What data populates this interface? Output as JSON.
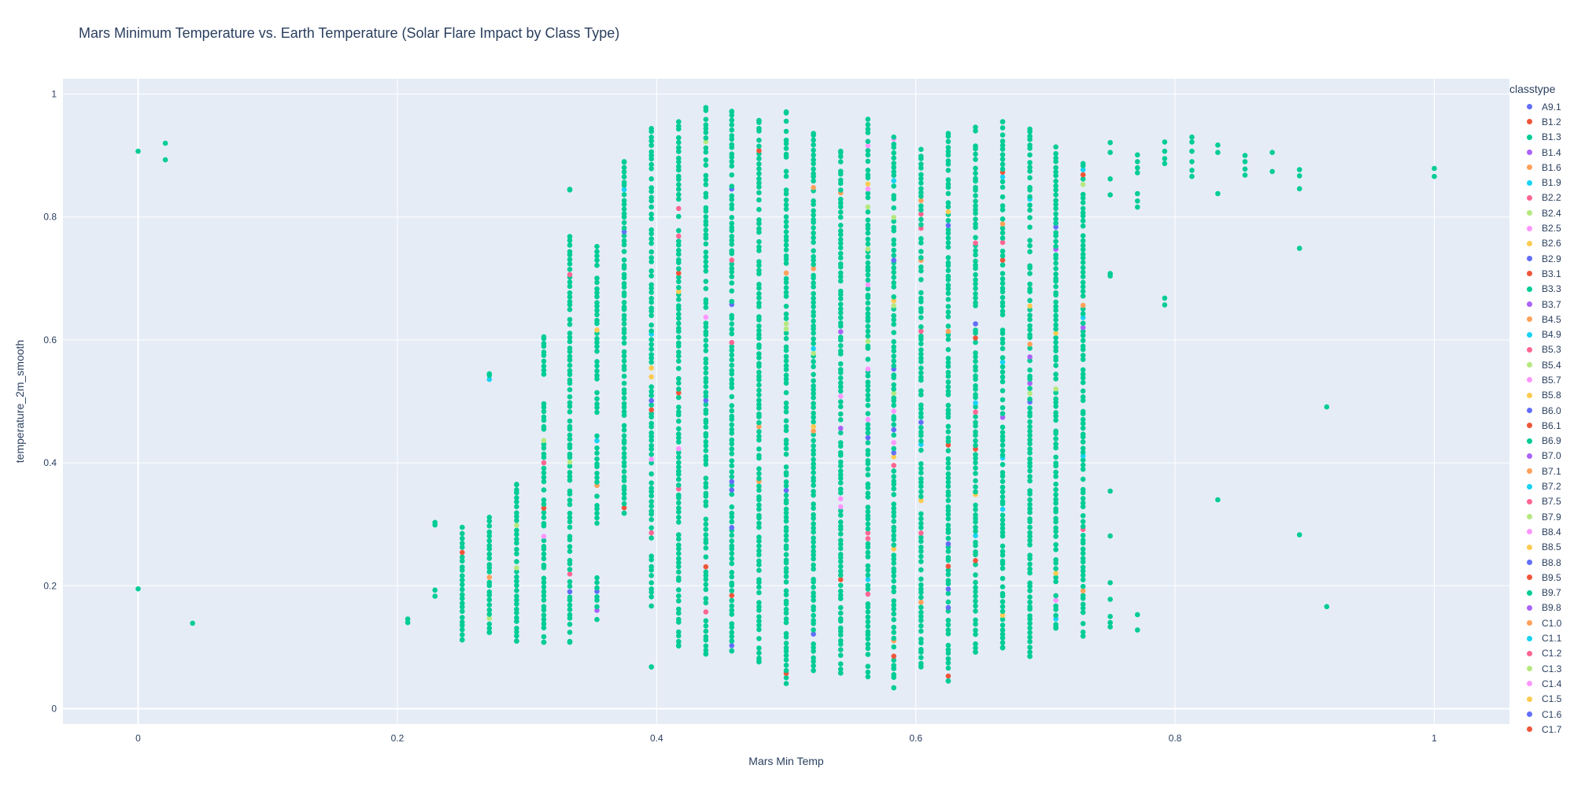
{
  "chart_data": {
    "type": "scatter",
    "title": "Mars Minimum Temperature vs. Earth Temperature (Solar Flare Impact by Class Type)",
    "xlabel": "Mars Min Temp",
    "ylabel": "temperature_2m_smooth",
    "xlim": [
      -0.058,
      1.058
    ],
    "ylim": [
      -0.025,
      1.025
    ],
    "x_ticks": [
      0,
      0.2,
      0.4,
      0.6,
      0.8,
      1
    ],
    "x_tick_labels": [
      "0",
      "0.2",
      "0.4",
      "0.6",
      "0.8",
      "1"
    ],
    "y_ticks": [
      0,
      0.2,
      0.4,
      0.6,
      0.8,
      1
    ],
    "y_tick_labels": [
      "0",
      "0.2",
      "0.4",
      "0.6",
      "0.8",
      "1"
    ],
    "grid": true,
    "plot_background": "#E5ECF6",
    "legend_title": "classtype",
    "legend_position": "right",
    "dominant_series": "B1.3",
    "classes": [
      {
        "name": "A9.1",
        "color": "#636EFA"
      },
      {
        "name": "B1.2",
        "color": "#EF553B"
      },
      {
        "name": "B1.3",
        "color": "#00CC96"
      },
      {
        "name": "B1.4",
        "color": "#AB63FA"
      },
      {
        "name": "B1.6",
        "color": "#FFA15A"
      },
      {
        "name": "B1.9",
        "color": "#19D3F3"
      },
      {
        "name": "B2.2",
        "color": "#FF6692"
      },
      {
        "name": "B2.4",
        "color": "#B6E880"
      },
      {
        "name": "B2.5",
        "color": "#FF97FF"
      },
      {
        "name": "B2.6",
        "color": "#FECB52"
      },
      {
        "name": "B2.9",
        "color": "#636EFA"
      },
      {
        "name": "B3.1",
        "color": "#EF553B"
      },
      {
        "name": "B3.3",
        "color": "#00CC96"
      },
      {
        "name": "B3.7",
        "color": "#AB63FA"
      },
      {
        "name": "B4.5",
        "color": "#FFA15A"
      },
      {
        "name": "B4.9",
        "color": "#19D3F3"
      },
      {
        "name": "B5.3",
        "color": "#FF6692"
      },
      {
        "name": "B5.4",
        "color": "#B6E880"
      },
      {
        "name": "B5.7",
        "color": "#FF97FF"
      },
      {
        "name": "B5.8",
        "color": "#FECB52"
      },
      {
        "name": "B6.0",
        "color": "#636EFA"
      },
      {
        "name": "B6.1",
        "color": "#EF553B"
      },
      {
        "name": "B6.9",
        "color": "#00CC96"
      },
      {
        "name": "B7.0",
        "color": "#AB63FA"
      },
      {
        "name": "B7.1",
        "color": "#FFA15A"
      },
      {
        "name": "B7.2",
        "color": "#19D3F3"
      },
      {
        "name": "B7.5",
        "color": "#FF6692"
      },
      {
        "name": "B7.9",
        "color": "#B6E880"
      },
      {
        "name": "B8.4",
        "color": "#FF97FF"
      },
      {
        "name": "B8.5",
        "color": "#FECB52"
      },
      {
        "name": "B8.8",
        "color": "#636EFA"
      },
      {
        "name": "B9.5",
        "color": "#EF553B"
      },
      {
        "name": "B9.7",
        "color": "#00CC96"
      },
      {
        "name": "B9.8",
        "color": "#AB63FA"
      },
      {
        "name": "C1.0",
        "color": "#FFA15A"
      },
      {
        "name": "C1.1",
        "color": "#19D3F3"
      },
      {
        "name": "C1.2",
        "color": "#FF6692"
      },
      {
        "name": "C1.3",
        "color": "#B6E880"
      },
      {
        "name": "C1.4",
        "color": "#FF97FF"
      },
      {
        "name": "C1.5",
        "color": "#FECB52"
      },
      {
        "name": "C1.6",
        "color": "#636EFA"
      },
      {
        "name": "C1.7",
        "color": "#EF553B"
      }
    ],
    "columns": [
      {
        "x": 0.0,
        "min": 0.195,
        "max": 0.907,
        "sparse": [
          0.907,
          0.195
        ]
      },
      {
        "x": 0.021,
        "min": 0.893,
        "max": 0.92,
        "sparse": [
          0.92,
          0.893
        ]
      },
      {
        "x": 0.042,
        "min": 0.139,
        "max": 0.139,
        "sparse": [
          0.139
        ]
      },
      {
        "x": 0.208,
        "min": 0.14,
        "max": 0.146,
        "sparse": [
          0.146,
          0.14
        ]
      },
      {
        "x": 0.229,
        "min": 0.183,
        "max": 0.303,
        "sparse": [
          0.303,
          0.299,
          0.193,
          0.183
        ]
      },
      {
        "x": 0.25,
        "min": 0.112,
        "max": 0.295
      },
      {
        "x": 0.271,
        "min": 0.124,
        "max": 0.545,
        "gap": [
          0.315,
          0.53
        ]
      },
      {
        "x": 0.292,
        "min": 0.11,
        "max": 0.365
      },
      {
        "x": 0.313,
        "min": 0.108,
        "max": 0.605,
        "gap": [
          0.5,
          0.54
        ]
      },
      {
        "x": 0.333,
        "min": 0.108,
        "max": 0.845,
        "gap": [
          0.77,
          0.84
        ]
      },
      {
        "x": 0.354,
        "min": 0.145,
        "max": 0.752,
        "gap": [
          0.22,
          0.3
        ]
      },
      {
        "x": 0.375,
        "min": 0.318,
        "max": 0.89
      },
      {
        "x": 0.396,
        "min": 0.068,
        "max": 0.944,
        "gap": [
          0.07,
          0.16
        ]
      },
      {
        "x": 0.417,
        "min": 0.102,
        "max": 0.955
      },
      {
        "x": 0.438,
        "min": 0.089,
        "max": 0.978
      },
      {
        "x": 0.458,
        "min": 0.094,
        "max": 0.972
      },
      {
        "x": 0.479,
        "min": 0.076,
        "max": 0.957
      },
      {
        "x": 0.5,
        "min": 0.041,
        "max": 0.971
      },
      {
        "x": 0.521,
        "min": 0.062,
        "max": 0.936
      },
      {
        "x": 0.542,
        "min": 0.058,
        "max": 0.907
      },
      {
        "x": 0.563,
        "min": 0.052,
        "max": 0.959
      },
      {
        "x": 0.583,
        "min": 0.034,
        "max": 0.93
      },
      {
        "x": 0.604,
        "min": 0.068,
        "max": 0.91
      },
      {
        "x": 0.625,
        "min": 0.045,
        "max": 0.936
      },
      {
        "x": 0.646,
        "min": 0.092,
        "max": 0.946
      },
      {
        "x": 0.667,
        "min": 0.099,
        "max": 0.955
      },
      {
        "x": 0.688,
        "min": 0.085,
        "max": 0.943
      },
      {
        "x": 0.708,
        "min": 0.131,
        "max": 0.914
      },
      {
        "x": 0.729,
        "min": 0.118,
        "max": 0.887
      },
      {
        "x": 0.75,
        "min": 0.133,
        "max": 0.921,
        "sparse": [
          0.921,
          0.905,
          0.862,
          0.836,
          0.708,
          0.704,
          0.354,
          0.281,
          0.205,
          0.178,
          0.15,
          0.14,
          0.133
        ]
      },
      {
        "x": 0.771,
        "min": 0.128,
        "max": 0.901,
        "sparse": [
          0.901,
          0.89,
          0.88,
          0.872,
          0.838,
          0.826,
          0.816,
          0.153,
          0.128
        ]
      },
      {
        "x": 0.792,
        "min": 0.657,
        "max": 0.922,
        "sparse": [
          0.922,
          0.907,
          0.895,
          0.887,
          0.668,
          0.657
        ]
      },
      {
        "x": 0.813,
        "min": 0.866,
        "max": 0.93,
        "sparse": [
          0.93,
          0.922,
          0.907,
          0.89,
          0.876,
          0.866
        ]
      },
      {
        "x": 0.833,
        "min": 0.34,
        "max": 0.917,
        "sparse": [
          0.917,
          0.905,
          0.838,
          0.34
        ]
      },
      {
        "x": 0.854,
        "min": 0.868,
        "max": 0.9,
        "sparse": [
          0.9,
          0.89,
          0.878,
          0.868
        ]
      },
      {
        "x": 0.875,
        "min": 0.874,
        "max": 0.905,
        "sparse": [
          0.905,
          0.874
        ]
      },
      {
        "x": 0.896,
        "min": 0.283,
        "max": 0.877,
        "sparse": [
          0.877,
          0.867,
          0.846,
          0.749,
          0.283
        ]
      },
      {
        "x": 0.917,
        "min": 0.166,
        "max": 0.491,
        "sparse": [
          0.491,
          0.166
        ]
      },
      {
        "x": 1.0,
        "min": 0.866,
        "max": 0.879,
        "sparse": [
          0.879,
          0.866
        ]
      }
    ]
  }
}
